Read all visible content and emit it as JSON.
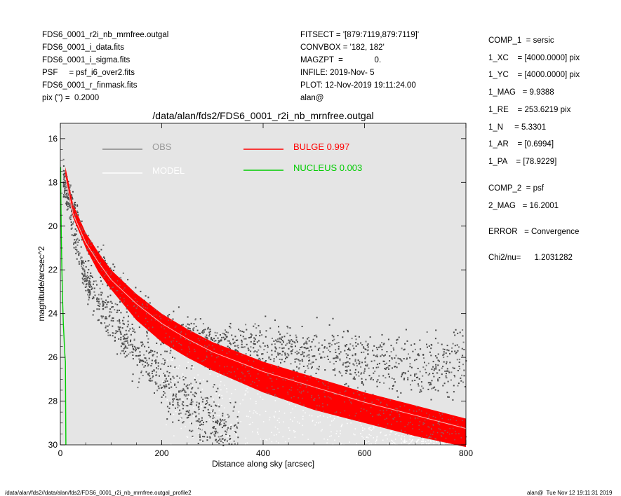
{
  "header_left": [
    "FDS6_0001_r2i_nb_mrnfree.outgal",
    "FDS6_0001_i_data.fits",
    "FDS6_0001_i_sigma.fits",
    "PSF     = psf_i6_over2.fits",
    "FDS6_0001_r_finmask.fits",
    "pix (\") =  0.2000"
  ],
  "header_mid": [
    "FITSECT = '[879:7119,879:7119]'",
    "CONVBOX = '182, 182'",
    "MAGZPT  =              0.",
    "INFILE: 2019-Nov- 5",
    "PLOT: 12-Nov-2019 19:11:24.00",
    "alan@"
  ],
  "params": [
    "COMP_1  = sersic",
    "1_XC    = [4000.0000] pix",
    "1_YC    = [4000.0000] pix",
    "1_MAG   = 9.9388",
    "1_RE    = 253.6219 pix",
    "1_N     = 5.3301",
    "1_AR    = [0.6994]",
    "1_PA    = [78.9229]",
    "COMP_2  = psf",
    "2_MAG   = 16.2001",
    "ERROR   = Convergence",
    "Chi2/nu=      1.2031282"
  ],
  "footer_left": "/data/alan/fds2//data/alan/fds2/FDS6_0001_r2i_nb_mrnfree.outgal_profile2",
  "footer_right": "alan@  Tue Nov 12 19:11:31 2019",
  "chart_data": {
    "type": "scatter",
    "title": "/data/alan/fds2/FDS6_0001_r2i_nb_mrnfree.outgal",
    "xlabel": "Distance along sky [arcsec]",
    "ylabel": "magnitude/arcsec^2",
    "xlim": [
      0,
      800
    ],
    "ylim": [
      30,
      15.3
    ],
    "y_inverted": true,
    "x_ticks": [
      "0",
      "200",
      "400",
      "600",
      "800"
    ],
    "y_ticks": [
      "16",
      "18",
      "20",
      "22",
      "24",
      "26",
      "28",
      "30"
    ],
    "grid": false,
    "background": "#e5e5e5",
    "legend_position": "top",
    "legend": [
      {
        "label": "OBS",
        "color": "#888888"
      },
      {
        "label": "MODEL",
        "color": "#ffffff"
      },
      {
        "label": "BULGE  0.997",
        "color": "#ff0000"
      },
      {
        "label": "NUCLEUS  0.003",
        "color": "#00cc00"
      }
    ],
    "series": [
      {
        "name": "BULGE  0.997",
        "color": "#ff0000",
        "x": [
          10,
          25,
          50,
          75,
          100,
          150,
          200,
          250,
          300,
          400,
          500,
          600,
          700,
          800
        ],
        "y_upper": [
          17.3,
          19.0,
          20.3,
          21.2,
          22.0,
          23.1,
          24.0,
          24.7,
          25.3,
          26.2,
          26.9,
          27.6,
          28.2,
          28.8
        ],
        "y_lower": [
          17.8,
          19.6,
          21.0,
          22.1,
          22.9,
          24.3,
          25.3,
          26.0,
          26.6,
          27.6,
          28.4,
          29.0,
          29.6,
          30.1
        ]
      },
      {
        "name": "NUCLEUS  0.003",
        "color": "#00cc00",
        "x": [
          0.5,
          1,
          2,
          3,
          4,
          5,
          6,
          7,
          8,
          9,
          10,
          11
        ],
        "y": [
          17.3,
          18.5,
          20.5,
          22.0,
          23.0,
          23.8,
          24.5,
          25.0,
          25.5,
          25.9,
          26.2,
          30.0
        ]
      },
      {
        "name": "OBS",
        "color": "#555555",
        "branches": [
          {
            "x": [
              5,
              50,
              100,
              150,
              200,
              250,
              300,
              350
            ],
            "y": [
              18,
              22.5,
              24.3,
              25.6,
              26.9,
              28.0,
              29.0,
              29.8
            ]
          },
          {
            "x": [
              5,
              50,
              100,
              150,
              200,
              300,
              400,
              500,
              600,
              700,
              800
            ],
            "y": [
              17.5,
              20.8,
              22.3,
              23.6,
              24.6,
              25.2,
              25.6,
              25.9,
              26.1,
              26.3,
              26.4
            ]
          }
        ]
      }
    ]
  }
}
